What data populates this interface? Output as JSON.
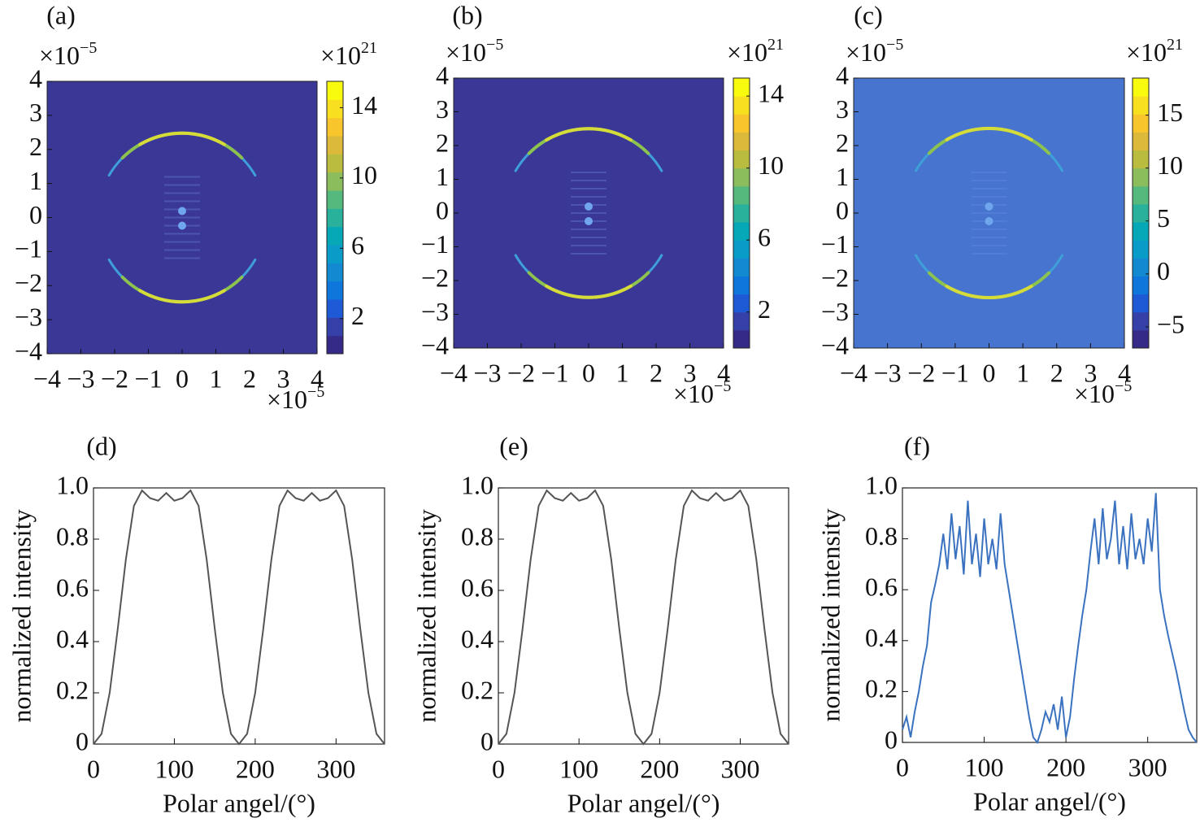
{
  "chart_data": [
    {
      "type": "heatmap",
      "panel_label": "(a)",
      "xlim": [
        -4,
        4
      ],
      "ylim": [
        -4,
        4
      ],
      "xticks": [
        {
          "value": -4,
          "label": "−4"
        },
        {
          "value": -3,
          "label": "−3"
        },
        {
          "value": -2,
          "label": "−2"
        },
        {
          "value": -1,
          "label": "−1"
        },
        0,
        1,
        2,
        3,
        4
      ],
      "yticks": [
        {
          "value": -4,
          "label": "−4"
        },
        {
          "value": -3,
          "label": "−3"
        },
        {
          "value": -2,
          "label": "−2"
        },
        {
          "value": -1,
          "label": "−1"
        },
        0,
        1,
        2,
        3,
        4
      ],
      "x_multiplier": {
        "base": "×10",
        "exponent": "−5"
      },
      "y_multiplier": {
        "base": "×10",
        "exponent": "−5"
      },
      "colorbar": {
        "lim": [
          0,
          15.5
        ],
        "ticks": [
          2,
          6,
          10,
          14
        ],
        "multiplier": {
          "base": "×10",
          "exponent": "21"
        }
      },
      "background": "#3b3797"
    },
    {
      "type": "heatmap",
      "panel_label": "(b)",
      "xlim": [
        -4,
        4
      ],
      "ylim": [
        -4,
        4
      ],
      "xticks": [
        {
          "value": -4,
          "label": "−4"
        },
        {
          "value": -3,
          "label": "−3"
        },
        {
          "value": -2,
          "label": "−2"
        },
        {
          "value": -1,
          "label": "−1"
        },
        0,
        1,
        2,
        3,
        4
      ],
      "yticks": [
        {
          "value": -4,
          "label": "−4"
        },
        {
          "value": -3,
          "label": "−3"
        },
        {
          "value": -2,
          "label": "−2"
        },
        {
          "value": -1,
          "label": "−1"
        },
        0,
        1,
        2,
        3,
        4
      ],
      "x_multiplier": {
        "base": "×10",
        "exponent": "−5"
      },
      "y_multiplier": {
        "base": "×10",
        "exponent": "−5"
      },
      "colorbar": {
        "lim": [
          0,
          15
        ],
        "ticks": [
          2,
          6,
          10,
          14
        ],
        "multiplier": {
          "base": "×10",
          "exponent": "21"
        }
      },
      "background": "#3b3797"
    },
    {
      "type": "heatmap",
      "panel_label": "(c)",
      "xlim": [
        -4,
        4
      ],
      "ylim": [
        -4,
        4
      ],
      "xticks": [
        {
          "value": -4,
          "label": "−4"
        },
        {
          "value": -3,
          "label": "−3"
        },
        {
          "value": -2,
          "label": "−2"
        },
        {
          "value": -1,
          "label": "−1"
        },
        0,
        1,
        2,
        3,
        4
      ],
      "yticks": [
        {
          "value": -4,
          "label": "−4"
        },
        {
          "value": -3,
          "label": "−3"
        },
        {
          "value": -2,
          "label": "−2"
        },
        {
          "value": -1,
          "label": "−1"
        },
        0,
        1,
        2,
        3,
        4
      ],
      "x_multiplier": {
        "base": "×10",
        "exponent": "−5"
      },
      "y_multiplier": {
        "base": "×10",
        "exponent": "−5"
      },
      "colorbar": {
        "lim": [
          -7,
          18.5
        ],
        "ticks": [
          {
            "value": -5,
            "label": "−5"
          },
          0,
          5,
          10,
          15
        ],
        "multiplier": {
          "base": "×10",
          "exponent": "21"
        }
      },
      "background": "#4674cf"
    },
    {
      "type": "line",
      "panel_label": "(d)",
      "xlabel": "Polar angel/(°)",
      "ylabel": "normalized intensity",
      "x": [
        0,
        10,
        20,
        30,
        40,
        50,
        60,
        70,
        80,
        90,
        100,
        110,
        120,
        130,
        140,
        150,
        160,
        170,
        180,
        190,
        200,
        210,
        220,
        230,
        240,
        250,
        260,
        270,
        280,
        290,
        300,
        310,
        320,
        330,
        340,
        350,
        360
      ],
      "series": [
        {
          "color": "#555555",
          "values": [
            0,
            0.04,
            0.2,
            0.45,
            0.72,
            0.93,
            0.99,
            0.96,
            0.95,
            0.98,
            0.95,
            0.96,
            0.99,
            0.93,
            0.72,
            0.45,
            0.2,
            0.04,
            0,
            0.04,
            0.2,
            0.45,
            0.72,
            0.93,
            0.99,
            0.96,
            0.95,
            0.98,
            0.95,
            0.96,
            0.99,
            0.93,
            0.72,
            0.45,
            0.2,
            0.04,
            0
          ]
        }
      ],
      "xlim": [
        0,
        360
      ],
      "ylim": [
        0,
        1
      ],
      "xticks": [
        0,
        100,
        200,
        300
      ],
      "yticks": [
        0,
        0.2,
        0.4,
        0.6,
        0.8,
        {
          "value": 1,
          "label": "1.0"
        }
      ]
    },
    {
      "type": "line",
      "panel_label": "(e)",
      "xlabel": "Polar angel/(°)",
      "ylabel": "normalized intensity",
      "x": [
        0,
        10,
        20,
        30,
        40,
        50,
        60,
        70,
        80,
        90,
        100,
        110,
        120,
        130,
        140,
        150,
        160,
        170,
        180,
        190,
        200,
        210,
        220,
        230,
        240,
        250,
        260,
        270,
        280,
        290,
        300,
        310,
        320,
        330,
        340,
        350,
        360
      ],
      "series": [
        {
          "color": "#555555",
          "values": [
            0,
            0.04,
            0.2,
            0.45,
            0.72,
            0.93,
            0.99,
            0.96,
            0.95,
            0.98,
            0.95,
            0.96,
            0.99,
            0.93,
            0.72,
            0.45,
            0.2,
            0.04,
            0,
            0.04,
            0.2,
            0.45,
            0.72,
            0.93,
            0.99,
            0.96,
            0.95,
            0.98,
            0.95,
            0.96,
            0.99,
            0.93,
            0.72,
            0.45,
            0.2,
            0.04,
            0
          ]
        }
      ],
      "xlim": [
        0,
        360
      ],
      "ylim": [
        0,
        1
      ],
      "xticks": [
        0,
        100,
        200,
        300
      ],
      "yticks": [
        0,
        0.2,
        0.4,
        0.6,
        0.8,
        {
          "value": 1,
          "label": "1.0"
        }
      ]
    },
    {
      "type": "line",
      "panel_label": "(f)",
      "xlabel": "Polar angel/(°)",
      "ylabel": "normalized intensity",
      "x": [
        0,
        5,
        10,
        15,
        20,
        25,
        30,
        35,
        40,
        45,
        50,
        55,
        60,
        65,
        70,
        75,
        80,
        85,
        90,
        95,
        100,
        105,
        110,
        115,
        120,
        125,
        130,
        135,
        140,
        145,
        150,
        155,
        160,
        165,
        170,
        175,
        180,
        185,
        190,
        195,
        200,
        205,
        210,
        215,
        220,
        225,
        230,
        235,
        240,
        245,
        250,
        255,
        260,
        265,
        270,
        275,
        280,
        285,
        290,
        295,
        300,
        305,
        310,
        315,
        320,
        325,
        330,
        335,
        340,
        345,
        350,
        355,
        360
      ],
      "series": [
        {
          "color": "#3a72c0",
          "values": [
            0.05,
            0.1,
            0.02,
            0.12,
            0.2,
            0.3,
            0.38,
            0.55,
            0.62,
            0.7,
            0.82,
            0.68,
            0.9,
            0.72,
            0.85,
            0.66,
            0.95,
            0.7,
            0.82,
            0.65,
            0.88,
            0.7,
            0.8,
            0.68,
            0.9,
            0.7,
            0.6,
            0.5,
            0.4,
            0.3,
            0.2,
            0.1,
            0.02,
            0,
            0.05,
            0.12,
            0.08,
            0.15,
            0.05,
            0.18,
            0.02,
            0.1,
            0.25,
            0.38,
            0.5,
            0.6,
            0.75,
            0.88,
            0.7,
            0.92,
            0.72,
            0.8,
            0.95,
            0.7,
            0.85,
            0.68,
            0.9,
            0.72,
            0.8,
            0.7,
            0.88,
            0.75,
            0.98,
            0.6,
            0.5,
            0.42,
            0.35,
            0.28,
            0.2,
            0.12,
            0.05,
            0.02,
            0
          ]
        }
      ],
      "xlim": [
        0,
        360
      ],
      "ylim": [
        0,
        1
      ],
      "xticks": [
        0,
        100,
        200,
        300
      ],
      "yticks": [
        0,
        0.2,
        0.4,
        0.6,
        0.8,
        {
          "value": 1,
          "label": "1.0"
        }
      ]
    }
  ]
}
